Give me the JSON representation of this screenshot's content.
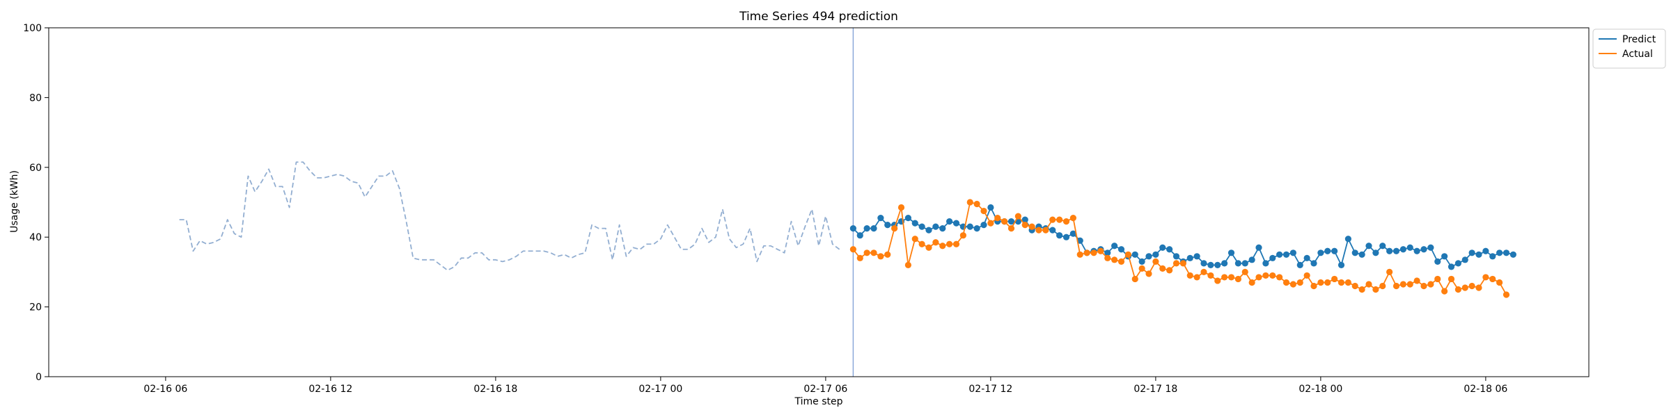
{
  "chart_data": {
    "type": "line",
    "title": "Time Series 494 prediction",
    "xlabel": "Time step",
    "ylabel": "Usage (kWh)",
    "ylim": [
      0,
      100
    ],
    "xlim": [
      "2016-02-16 01:45",
      "2016-02-18 09:45"
    ],
    "yticks": [
      0,
      20,
      40,
      60,
      80,
      100
    ],
    "xticks": [
      "02-16 06",
      "02-16 12",
      "02-16 18",
      "02-17 00",
      "02-17 06",
      "02-17 12",
      "02-17 18",
      "02-18 00",
      "02-18 06"
    ],
    "grid": false,
    "legend_position": "outside upper-right",
    "x_interval_minutes": 15,
    "history_start": "2016-02-16 06:30",
    "forecast_start": "2016-02-17 07:00",
    "forecast_marker": "2016-02-17 07:00",
    "series": [
      {
        "name": "",
        "style": "dashed",
        "color": "#92aed1",
        "start": "2016-02-16 06:30",
        "values": [
          45,
          45,
          36,
          39,
          38,
          38.5,
          39.5,
          45,
          41,
          40,
          57.5,
          53,
          56,
          59.5,
          54.5,
          54.5,
          48.5,
          61.5,
          61.5,
          59,
          57,
          57,
          57.5,
          58,
          57.5,
          56,
          55.5,
          51.5,
          54.5,
          57.5,
          57.5,
          59,
          54,
          44.5,
          34,
          33.5,
          33.5,
          33.5,
          32,
          30.5,
          31.5,
          34,
          34,
          35.5,
          35.5,
          33.5,
          33.5,
          33,
          33.5,
          34.5,
          36,
          36,
          36,
          36,
          35.5,
          34.5,
          35,
          34,
          35,
          35.5,
          43.5,
          42.5,
          42.5,
          33.5,
          43.5,
          34.5,
          37,
          36.5,
          38,
          38,
          39.5,
          43.5,
          40,
          36.5,
          36.5,
          38,
          42.5,
          38.5,
          40,
          48,
          39.5,
          37,
          38,
          42.5,
          33,
          37.5,
          37.5,
          36.5,
          35.5,
          44.5,
          37.5,
          43,
          48,
          37.5,
          46,
          38,
          36.5
        ]
      },
      {
        "name": "Predict",
        "style": "solid-markers",
        "color": "#1f77b4",
        "start": "2016-02-17 07:00",
        "values": [
          42.5,
          40.5,
          42.5,
          42.5,
          45.5,
          43.5,
          43.5,
          44.5,
          45.5,
          44,
          43,
          42,
          43,
          42.5,
          44.5,
          44,
          43,
          43,
          42.5,
          43.5,
          48.5,
          44.5,
          44.5,
          44.5,
          44.5,
          45,
          42,
          43,
          42.5,
          42,
          40.5,
          40,
          41,
          39,
          35.5,
          36,
          36.5,
          35.5,
          37.5,
          36.5,
          34.5,
          35,
          33,
          34.5,
          35,
          37,
          36.5,
          34.5,
          33,
          34,
          34.5,
          32.5,
          32,
          32,
          32.5,
          35.5,
          32.5,
          32.5,
          33.5,
          37,
          32.5,
          34,
          35,
          35,
          35.5,
          32,
          34,
          32.5,
          35.5,
          36,
          36,
          32,
          39.5,
          35.5,
          35,
          37.5,
          35.5,
          37.5,
          36,
          36,
          36.5,
          37,
          36,
          36.5,
          37,
          33,
          34.5,
          31.5,
          32.5,
          33.5,
          35.5,
          35,
          36,
          34.5,
          35.5,
          35.5,
          35
        ]
      },
      {
        "name": "Actual",
        "style": "solid-markers",
        "color": "#ff7f0e",
        "start": "2016-02-17 07:00",
        "values": [
          36.5,
          34,
          35.5,
          35.5,
          34.5,
          35,
          42.5,
          48.5,
          32,
          39.5,
          38,
          37,
          38.5,
          37.5,
          38,
          38,
          40.5,
          50,
          49.5,
          47.5,
          44,
          45.5,
          44.5,
          42.5,
          46,
          43.5,
          43,
          42,
          42,
          45,
          45,
          44.5,
          45.5,
          35,
          35.5,
          35.5,
          36,
          34,
          33.5,
          33,
          35,
          28,
          31,
          29.5,
          33,
          31,
          30.5,
          32.5,
          32.5,
          29,
          28.5,
          30,
          29,
          27.5,
          28.5,
          28.5,
          28,
          30,
          27,
          28.5,
          29,
          29,
          28.5,
          27,
          26.5,
          27,
          29,
          26,
          27,
          27,
          28,
          27,
          27,
          26,
          25,
          26.5,
          25,
          26,
          30,
          26,
          26.5,
          26.5,
          27.5,
          26,
          26.5,
          28,
          24.5,
          28,
          25,
          25.5,
          26,
          25.5,
          28.5,
          28,
          27,
          23.5
        ]
      }
    ]
  }
}
